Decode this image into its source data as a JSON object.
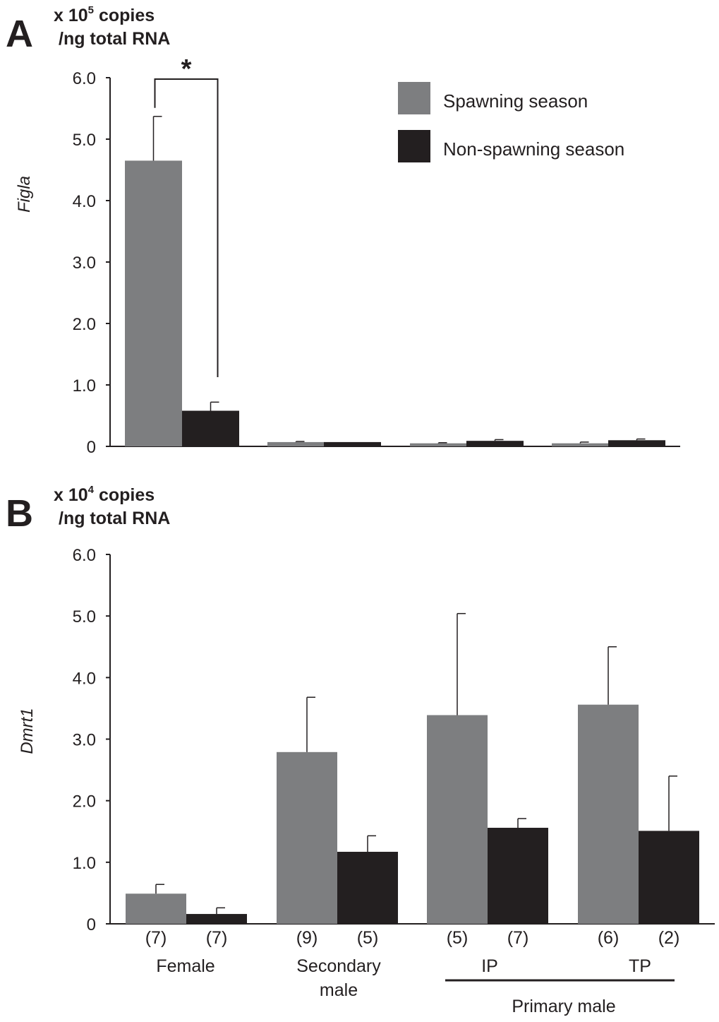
{
  "chart_data": [
    {
      "type": "bar",
      "panel": "A",
      "unit": {
        "prefix": "x 10",
        "exponent": "5",
        "suffix": " copies",
        "line2": "/ng total RNA"
      },
      "ylabel": "Figla",
      "ylim": [
        0,
        6
      ],
      "yticks": [
        "0",
        "1.0",
        "2.0",
        "3.0",
        "4.0",
        "5.0",
        "6.0"
      ],
      "categories": [
        "Female",
        "Secondary male",
        "IP",
        "TP"
      ],
      "series": [
        {
          "name": "Spawning season",
          "values": [
            4.65,
            0.07,
            0.05,
            0.05
          ],
          "errors": [
            0.72,
            0.01,
            0.01,
            0.02
          ]
        },
        {
          "name": "Non-spawning season",
          "values": [
            0.58,
            0.07,
            0.09,
            0.1
          ],
          "errors": [
            0.14,
            0.0,
            0.02,
            0.02
          ]
        }
      ],
      "significance": {
        "marker": "*",
        "category": "Female"
      },
      "legend": "top-right"
    },
    {
      "type": "bar",
      "panel": "B",
      "unit": {
        "prefix": "x 10",
        "exponent": "4",
        "suffix": " copies",
        "line2": "/ng total RNA"
      },
      "ylabel": "Dmrt1",
      "ylim": [
        0,
        6
      ],
      "yticks": [
        "0",
        "1.0",
        "2.0",
        "3.0",
        "4.0",
        "5.0",
        "6.0"
      ],
      "categories": [
        "Female",
        "Secondary male",
        "IP",
        "TP"
      ],
      "series": [
        {
          "name": "Spawning season",
          "values": [
            0.49,
            2.79,
            3.39,
            3.56
          ],
          "errors": [
            0.15,
            0.89,
            1.65,
            0.94
          ],
          "n": [
            "(7)",
            "(9)",
            "(5)",
            "(6)"
          ]
        },
        {
          "name": "Non-spawning season",
          "values": [
            0.16,
            1.17,
            1.56,
            1.51
          ],
          "errors": [
            0.1,
            0.26,
            0.15,
            0.89
          ],
          "n": [
            "(7)",
            "(5)",
            "(7)",
            "(2)"
          ]
        }
      ],
      "group_labels": {
        "female": "Female",
        "secondary_line1": "Secondary",
        "secondary_line2": "male",
        "ip": "IP",
        "tp": "TP",
        "primary": "Primary male"
      }
    }
  ],
  "colors": {
    "spawning": "#7d7e80",
    "non_spawning": "#231f20",
    "ink": "#231f20"
  }
}
